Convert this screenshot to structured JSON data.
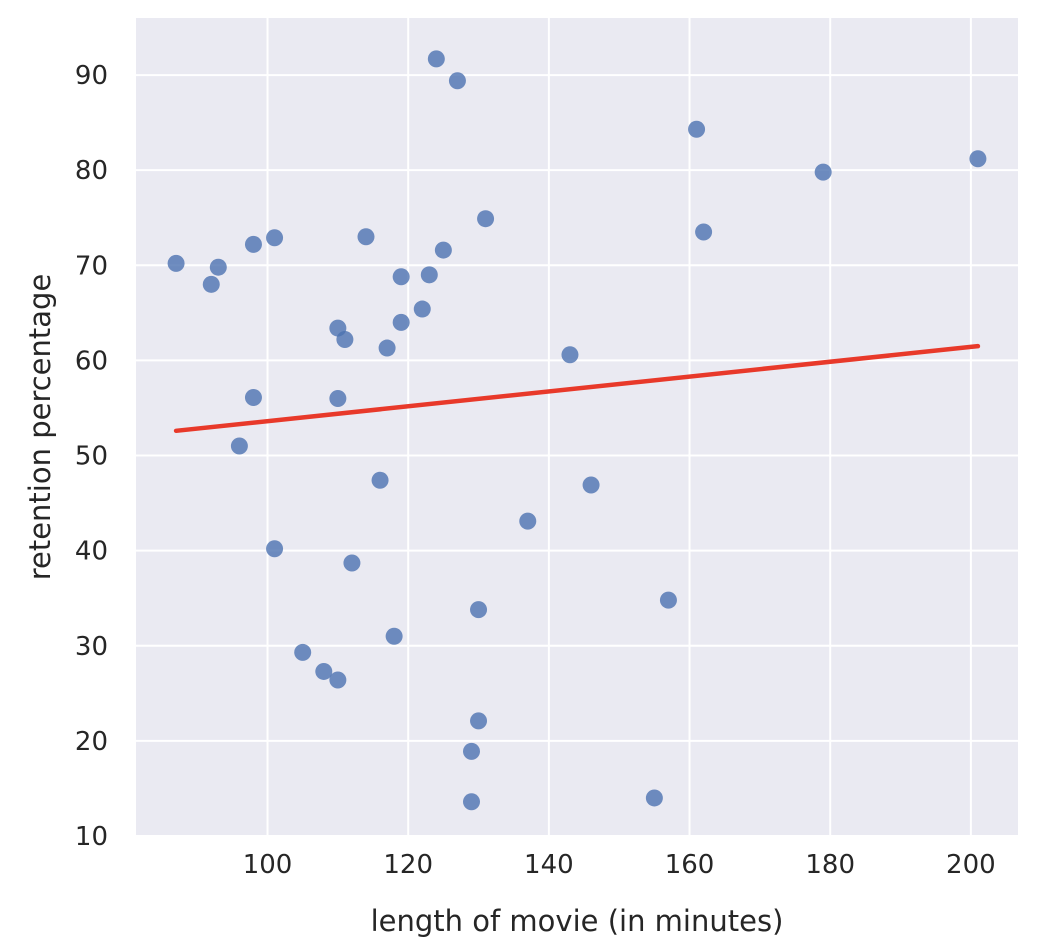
{
  "chart_data": {
    "type": "scatter",
    "xlabel": "length of movie (in minutes)",
    "ylabel": "retention percentage",
    "xlim": [
      81.3,
      206.7
    ],
    "ylim": [
      10,
      96
    ],
    "xticks": [
      100,
      120,
      140,
      160,
      180,
      200
    ],
    "yticks": [
      10,
      20,
      30,
      40,
      50,
      60,
      70,
      80,
      90
    ],
    "grid": true,
    "legend": "none",
    "colors": {
      "background": "#eaeaf2",
      "grid": "#ffffff",
      "points": "#4c72b0",
      "regression": "#e8392a"
    },
    "points": [
      {
        "x": 87,
        "y": 70.2
      },
      {
        "x": 92,
        "y": 68.0
      },
      {
        "x": 93,
        "y": 69.8
      },
      {
        "x": 96,
        "y": 51.0
      },
      {
        "x": 98,
        "y": 72.2
      },
      {
        "x": 98,
        "y": 56.1
      },
      {
        "x": 101,
        "y": 72.9
      },
      {
        "x": 101,
        "y": 40.2
      },
      {
        "x": 105,
        "y": 29.3
      },
      {
        "x": 108,
        "y": 27.3
      },
      {
        "x": 110,
        "y": 63.4
      },
      {
        "x": 110,
        "y": 56.0
      },
      {
        "x": 110,
        "y": 26.4
      },
      {
        "x": 111,
        "y": 62.2
      },
      {
        "x": 112,
        "y": 38.7
      },
      {
        "x": 114,
        "y": 73.0
      },
      {
        "x": 116,
        "y": 47.4
      },
      {
        "x": 117,
        "y": 61.3
      },
      {
        "x": 118,
        "y": 31.0
      },
      {
        "x": 119,
        "y": 68.8
      },
      {
        "x": 119,
        "y": 64.0
      },
      {
        "x": 122,
        "y": 65.4
      },
      {
        "x": 123,
        "y": 69.0
      },
      {
        "x": 124,
        "y": 91.7
      },
      {
        "x": 125,
        "y": 71.6
      },
      {
        "x": 127,
        "y": 89.4
      },
      {
        "x": 129,
        "y": 18.9
      },
      {
        "x": 129,
        "y": 13.6
      },
      {
        "x": 130,
        "y": 33.8
      },
      {
        "x": 130,
        "y": 22.1
      },
      {
        "x": 131,
        "y": 74.9
      },
      {
        "x": 137,
        "y": 43.1
      },
      {
        "x": 143,
        "y": 60.6
      },
      {
        "x": 146,
        "y": 46.9
      },
      {
        "x": 155,
        "y": 14.0
      },
      {
        "x": 157,
        "y": 34.8
      },
      {
        "x": 161,
        "y": 84.3
      },
      {
        "x": 162,
        "y": 73.5
      },
      {
        "x": 179,
        "y": 79.8
      },
      {
        "x": 201,
        "y": 81.2
      }
    ],
    "regression_line": {
      "x": [
        87,
        201
      ],
      "y": [
        52.6,
        61.5
      ]
    }
  }
}
